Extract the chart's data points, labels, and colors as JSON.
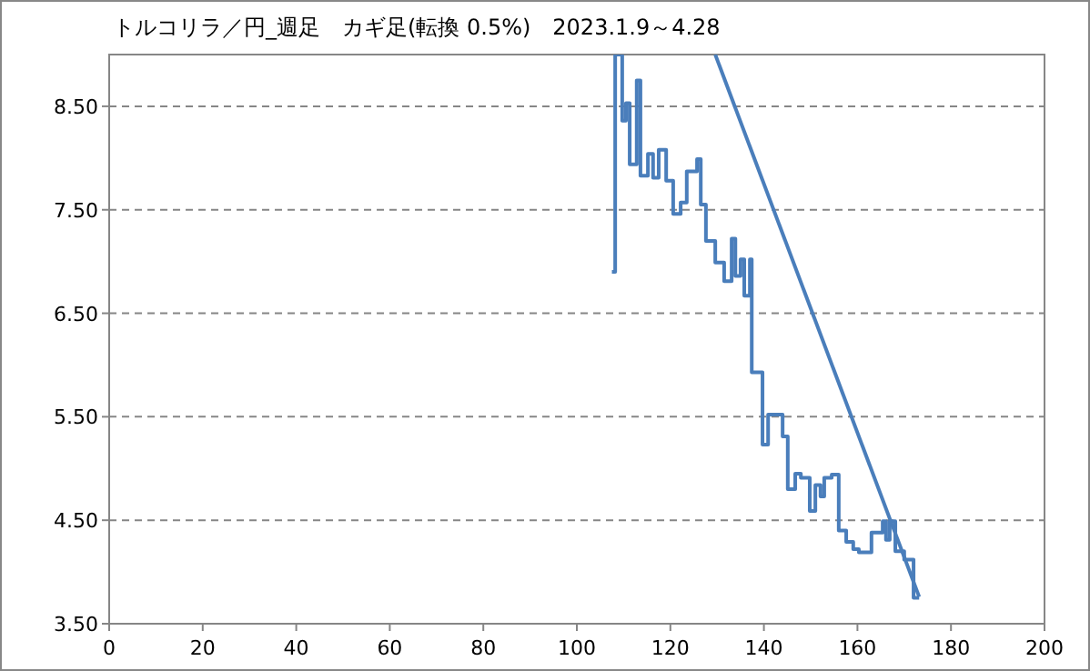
{
  "chart_data": {
    "type": "line",
    "title": "トルコリラ／円_週足　カギ足(転換 0.5%)　2023.1.9～4.28",
    "xlim": [
      0,
      200
    ],
    "xticks": [
      0,
      20,
      40,
      60,
      80,
      100,
      120,
      140,
      160,
      180,
      200
    ],
    "ylim": [
      3.5,
      9.0
    ],
    "yticks": [
      {
        "value": 3.5,
        "label": "3.50"
      },
      {
        "value": 4.5,
        "label": "4.50"
      },
      {
        "value": 5.5,
        "label": "5.50"
      },
      {
        "value": 6.5,
        "label": "6.50"
      },
      {
        "value": 7.5,
        "label": "7.50"
      },
      {
        "value": 8.5,
        "label": "8.50"
      }
    ],
    "grid": "y",
    "marker": "none",
    "series": [
      {
        "type": "step",
        "color": "#4a7ebb",
        "x": [
          107.5,
          108.2,
          109.7,
          110.5,
          111.3,
          112.8,
          113.6,
          115.2,
          116.3,
          117.5,
          119.1,
          120.6,
          122.2,
          123.5,
          125.7,
          126.5,
          127.6,
          129.6,
          131.5,
          133.1,
          133.9,
          135.0,
          135.8,
          137.0,
          137.4,
          139.7,
          140.9,
          144.0,
          145.1,
          146.7,
          147.9,
          149.8,
          151.0,
          152.1,
          152.9,
          154.5,
          156.0,
          157.6,
          159.1,
          160.3,
          163.0,
          165.4,
          166.1,
          166.9,
          168.1,
          170.0,
          172.0,
          173.2
        ],
        "values": [
          6.9,
          9.0,
          8.36,
          8.53,
          7.94,
          8.75,
          7.83,
          8.04,
          7.81,
          8.08,
          7.78,
          7.46,
          7.57,
          7.87,
          7.99,
          7.55,
          7.2,
          6.99,
          6.81,
          7.22,
          6.86,
          7.02,
          6.67,
          7.02,
          5.93,
          5.23,
          5.52,
          5.31,
          4.8,
          4.95,
          4.91,
          4.59,
          4.84,
          4.73,
          4.91,
          4.94,
          4.4,
          4.29,
          4.22,
          4.19,
          4.38,
          4.49,
          4.31,
          4.49,
          4.2,
          4.12,
          3.75,
          3.75
        ]
      },
      {
        "type": "line",
        "color": "#4a7ebb",
        "x": [
          129.6,
          173.2
        ],
        "values": [
          9.0,
          3.76
        ]
      }
    ]
  }
}
